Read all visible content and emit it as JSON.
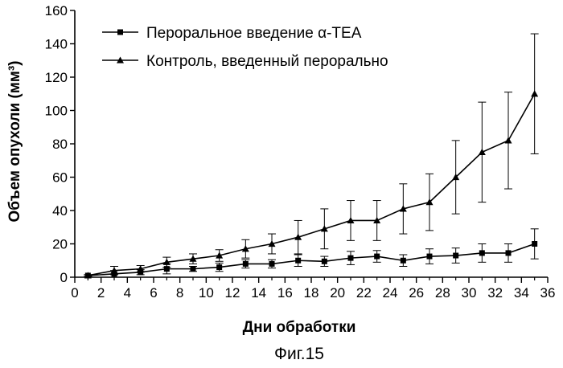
{
  "chart_data": {
    "type": "line",
    "title": "",
    "xlabel": "Дни обработки",
    "ylabel": "Объем опухоли (мм³)",
    "xlim": [
      0,
      36
    ],
    "ylim": [
      0,
      160
    ],
    "xticks": [
      0,
      2,
      4,
      6,
      8,
      10,
      12,
      14,
      16,
      18,
      20,
      22,
      24,
      26,
      28,
      30,
      32,
      34,
      36
    ],
    "yticks": [
      0,
      20,
      40,
      60,
      80,
      100,
      120,
      140,
      160
    ],
    "grid": false,
    "legend_position": "top-left",
    "series": [
      {
        "name": "Пероральное введение α-TEA",
        "marker": "square",
        "x": [
          1,
          3,
          5,
          7,
          9,
          11,
          13,
          15,
          17,
          19,
          21,
          23,
          25,
          27,
          29,
          31,
          33,
          35
        ],
        "values": [
          1,
          2,
          3,
          5,
          5,
          6,
          8,
          8,
          10,
          9.5,
          11.5,
          12.5,
          10,
          12.5,
          13,
          14.5,
          14.5,
          20
        ],
        "error": [
          0.5,
          2,
          1.5,
          3,
          1.5,
          2.5,
          2.5,
          2.5,
          3.5,
          3,
          4,
          3.5,
          3.5,
          4.5,
          4.5,
          5.5,
          5.5,
          9
        ]
      },
      {
        "name": "Контроль, введенный перорально",
        "marker": "triangle",
        "x": [
          1,
          3,
          5,
          7,
          9,
          11,
          13,
          15,
          17,
          19,
          21,
          23,
          25,
          27,
          29,
          31,
          33,
          35
        ],
        "values": [
          1,
          4,
          5,
          9,
          11,
          13,
          17,
          20,
          24,
          29,
          34,
          34,
          41,
          45,
          60,
          75,
          82,
          110
        ],
        "error": [
          0.5,
          2.5,
          2,
          3,
          3,
          3.5,
          5.5,
          6,
          10,
          12,
          12,
          12,
          15,
          17,
          22,
          30,
          29,
          36
        ]
      }
    ]
  },
  "caption": "Фиг.15"
}
